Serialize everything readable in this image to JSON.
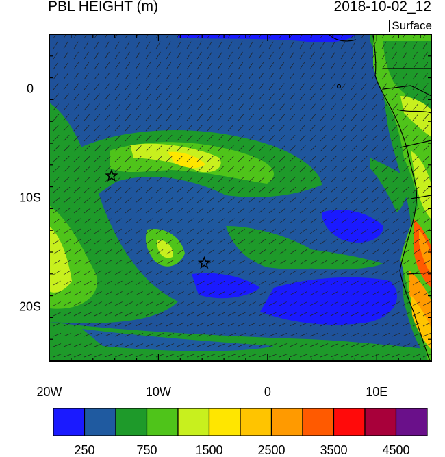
{
  "header": {
    "title": "PBL HEIGHT (m)",
    "datetime": "2018-10-02_12",
    "level": "Surface"
  },
  "map": {
    "lon_range": [
      -20,
      15
    ],
    "lat_range": [
      -25,
      5
    ],
    "x_ticks": [
      {
        "value": -20,
        "label": "20W"
      },
      {
        "value": -10,
        "label": "10W"
      },
      {
        "value": 0,
        "label": "0"
      },
      {
        "value": 10,
        "label": "10E"
      }
    ],
    "y_ticks": [
      {
        "value": 0,
        "label": "0"
      },
      {
        "value": -10,
        "label": "10S"
      },
      {
        "value": -20,
        "label": "20S"
      }
    ],
    "markers": [
      {
        "name": "star-marker-1",
        "lon": -14.3,
        "lat": -8.0
      },
      {
        "name": "star-marker-2",
        "lon": -5.8,
        "lat": -16.0
      }
    ]
  },
  "colorbar": {
    "colors": [
      "#1a1aff",
      "#1f5aa0",
      "#1e9a2a",
      "#4fc41a",
      "#c8f01e",
      "#ffe600",
      "#ffc400",
      "#ff9a00",
      "#ff5a00",
      "#ff0a0a",
      "#a8003a",
      "#6a108a"
    ],
    "labels": [
      {
        "index": 1,
        "text": "250"
      },
      {
        "index": 3,
        "text": "750"
      },
      {
        "index": 5,
        "text": "1500"
      },
      {
        "index": 7,
        "text": "2500"
      },
      {
        "index": 9,
        "text": "3500"
      },
      {
        "index": 11,
        "text": "4500"
      }
    ]
  }
}
